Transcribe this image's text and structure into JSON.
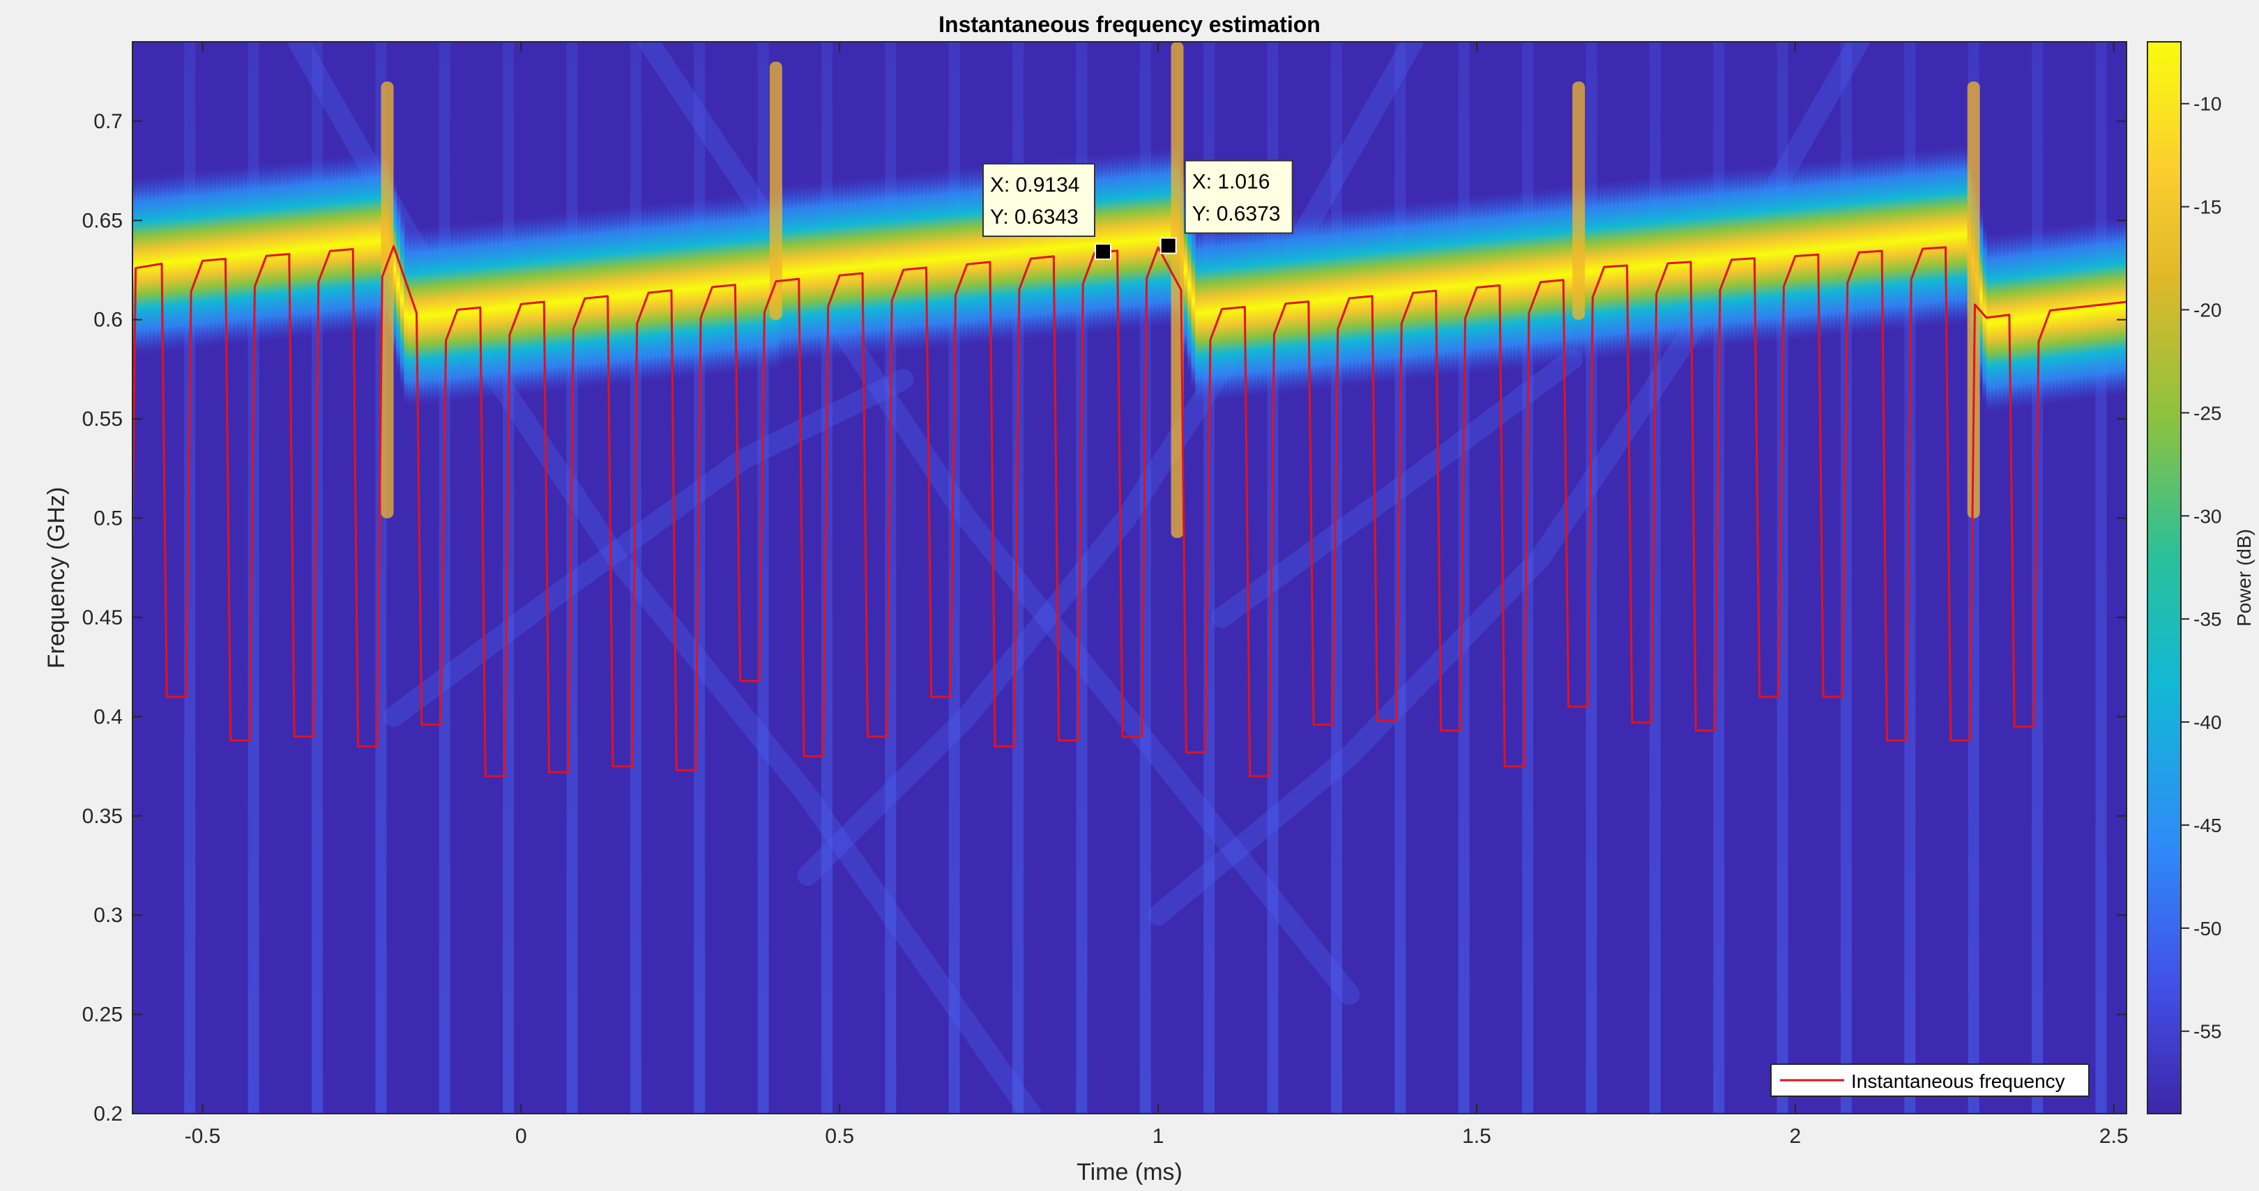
{
  "chart_data": {
    "type": "heatmap",
    "title": "Instantaneous frequency estimation",
    "xlabel": "Time (ms)",
    "ylabel": "Frequency (GHz)",
    "xlim": [
      -0.61,
      2.52
    ],
    "ylim": [
      0.2,
      0.74
    ],
    "xticks": [
      -0.5,
      0,
      0.5,
      1,
      1.5,
      2,
      2.5
    ],
    "xtick_labels": [
      "-0.5",
      "0",
      "0.5",
      "1",
      "1.5",
      "2",
      "2.5"
    ],
    "yticks": [
      0.2,
      0.25,
      0.3,
      0.35,
      0.4,
      0.45,
      0.5,
      0.55,
      0.6,
      0.65,
      0.7
    ],
    "ytick_labels": [
      "0.2",
      "0.25",
      "0.3",
      "0.35",
      "0.4",
      "0.45",
      "0.5",
      "0.55",
      "0.6",
      "0.65",
      "0.7"
    ],
    "colorbar": {
      "label": "Power (dB)",
      "range": [
        -59,
        -7
      ],
      "ticks": [
        -10,
        -15,
        -20,
        -25,
        -30,
        -35,
        -40,
        -45,
        -50,
        -55
      ],
      "tick_labels": [
        "-10",
        "-15",
        "-20",
        "-25",
        "-30",
        "-35",
        "-40",
        "-45",
        "-50",
        "-55"
      ],
      "colormap": [
        "#3e26a8",
        "#4150e8",
        "#2f8bf8",
        "#12b8d5",
        "#2ac09a",
        "#8dc23f",
        "#e0b82a",
        "#fbce2f",
        "#f9fb0e"
      ]
    },
    "spectrogram_ridge": {
      "description_points_ms_ghz": [
        [
          -0.61,
          0.627
        ],
        [
          -0.21,
          0.64
        ],
        [
          -0.18,
          0.601
        ],
        [
          0.4,
          0.62
        ],
        [
          0.41,
          0.623
        ],
        [
          1.03,
          0.642
        ],
        [
          1.06,
          0.603
        ],
        [
          1.65,
          0.623
        ],
        [
          1.67,
          0.624
        ],
        [
          2.27,
          0.643
        ],
        [
          2.3,
          0.598
        ],
        [
          2.52,
          0.607
        ]
      ]
    },
    "grid": false,
    "legend_position": "bottom-right",
    "series": [
      {
        "name": "Instantaneous frequency",
        "color": "#e3121b",
        "pulse_period_ms": 0.1,
        "high_level_ghz": [
          [
            -0.61,
            0.627
          ],
          [
            -0.2,
            0.637
          ],
          [
            -0.17,
            0.603
          ],
          [
            0.39,
            0.619
          ],
          [
            0.42,
            0.62
          ],
          [
            1.02,
            0.637
          ],
          [
            1.05,
            0.604
          ],
          [
            1.64,
            0.62
          ],
          [
            1.67,
            0.626
          ],
          [
            2.27,
            0.637
          ],
          [
            2.3,
            0.601
          ],
          [
            2.52,
            0.609
          ]
        ],
        "dip_minima_ghz": [
          0.41,
          0.388,
          0.39,
          0.385,
          0.396,
          0.37,
          0.372,
          0.375,
          0.373,
          0.418,
          0.38,
          0.39,
          0.41,
          0.385,
          0.388,
          0.39,
          0.382,
          0.37,
          0.396,
          0.398,
          0.393,
          0.375,
          0.405,
          0.397,
          0.393,
          0.41,
          0.41,
          0.388,
          0.388,
          0.395
        ]
      }
    ],
    "data_tips": [
      {
        "x_label": "X: 0.9134",
        "y_label": "Y: 0.6343",
        "x": 0.9134,
        "y": 0.6343
      },
      {
        "x_label": "X: 1.016",
        "y_label": "Y: 0.6373",
        "x": 1.016,
        "y": 0.6373
      }
    ]
  }
}
